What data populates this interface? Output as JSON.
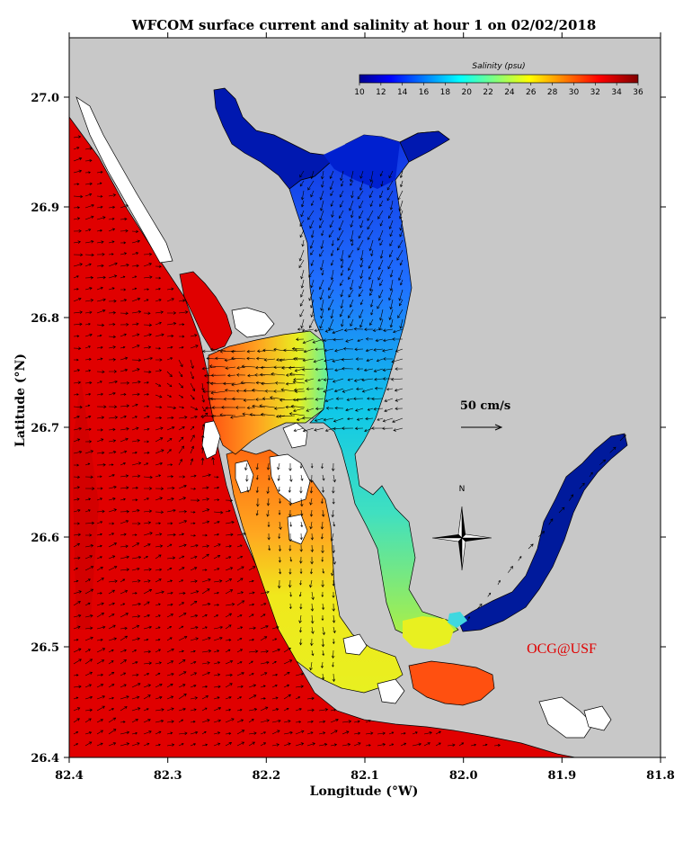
{
  "title": "WFCOM surface current and salinity at hour 1 on 02/02/2018",
  "x_axis": {
    "label": "Longitude (°W)",
    "ticks": [
      "82.4",
      "82.3",
      "82.2",
      "82.1",
      "82.0",
      "81.9",
      "81.8"
    ]
  },
  "y_axis": {
    "label": "Latitude (°N)",
    "ticks": [
      "27.0",
      "26.9",
      "26.8",
      "26.7",
      "26.6",
      "26.5",
      "26.4"
    ]
  },
  "colorbar": {
    "title": "Salinity (psu)",
    "ticks": [
      "10",
      "12",
      "14",
      "16",
      "18",
      "20",
      "22",
      "24",
      "26",
      "28",
      "30",
      "32",
      "34",
      "36"
    ],
    "range": [
      10,
      36
    ],
    "colormap": "jet"
  },
  "scale_vector": {
    "label": "50 cm/s"
  },
  "compass": {
    "label": "N"
  },
  "credit": "OCG@USF",
  "colors": {
    "land": "#c8c8c8",
    "open_gulf": "#e00000",
    "credit": "#e00000",
    "coast": "#000000"
  }
}
